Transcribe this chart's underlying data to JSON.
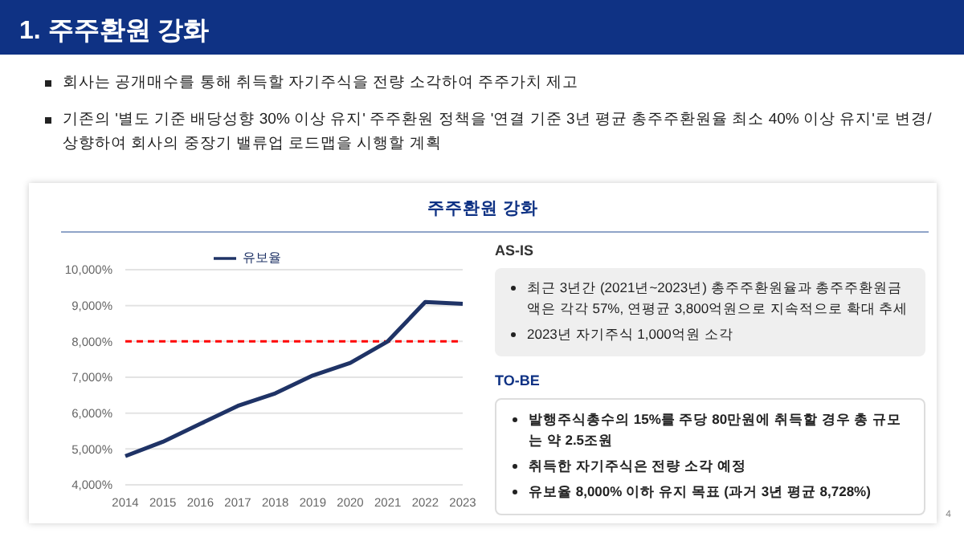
{
  "chart_data": {
    "type": "line",
    "title": "1. 주주환원 강화",
    "subtitle": "주주환원 강화",
    "categories": [
      "2014",
      "2015",
      "2016",
      "2017",
      "2018",
      "2019",
      "2020",
      "2021",
      "2022",
      "2023"
    ],
    "series": [
      {
        "name": "유보율",
        "color": "#1f3366",
        "values": [
          4800,
          5200,
          5700,
          6200,
          6550,
          7050,
          7400,
          8000,
          9100,
          9050
        ]
      }
    ],
    "ylim": [
      4000,
      10000
    ],
    "yticks": [
      {
        "value": 4000,
        "label": "4,000%"
      },
      {
        "value": 5000,
        "label": "5,000%"
      },
      {
        "value": 6000,
        "label": "6,000%"
      },
      {
        "value": 7000,
        "label": "7,000%"
      },
      {
        "value": 8000,
        "label": "8,000%"
      },
      {
        "value": 9000,
        "label": "9,000%"
      },
      {
        "value": 10000,
        "label": "10,000%"
      }
    ],
    "ref_lines": [
      {
        "axis": "y",
        "value": 8000,
        "color": "#ff0000",
        "line_style": "dashed"
      }
    ],
    "grid": "y",
    "legend": "top",
    "marker": "none",
    "line_style": "solid",
    "annotations": [
      "회사는 공개매수를 통해 취득할 자기주식을 전량 소각하여 주주가치 제고",
      "기존의 '별도 기준 배당성향 30% 이상 유지' 주주환원 정책을 '연결 기준 3년 평균 총주주환원율 최소 40% 이상 유지'로 변경/상향하여 회사의 중장기 밸류업 로드맵을 시행할 계획",
      "AS-IS",
      "최근 3년간 (2021년~2023년) 총주주환원율과 총주주환원금액은 각각 57%, 연평균 3,800억원으로 지속적으로 확대 추세",
      "2023년 자기주식 1,000억원 소각",
      "TO-BE",
      "발행주식총수의 15%를 주당 80만원에 취득할 경우 총 규모는 약 2.5조원",
      "취득한 자기주식은 전량 소각 예정",
      "유보율 8,000% 이하 유지 목표 (과거 3년 평균 8,728%)",
      "4"
    ]
  }
}
